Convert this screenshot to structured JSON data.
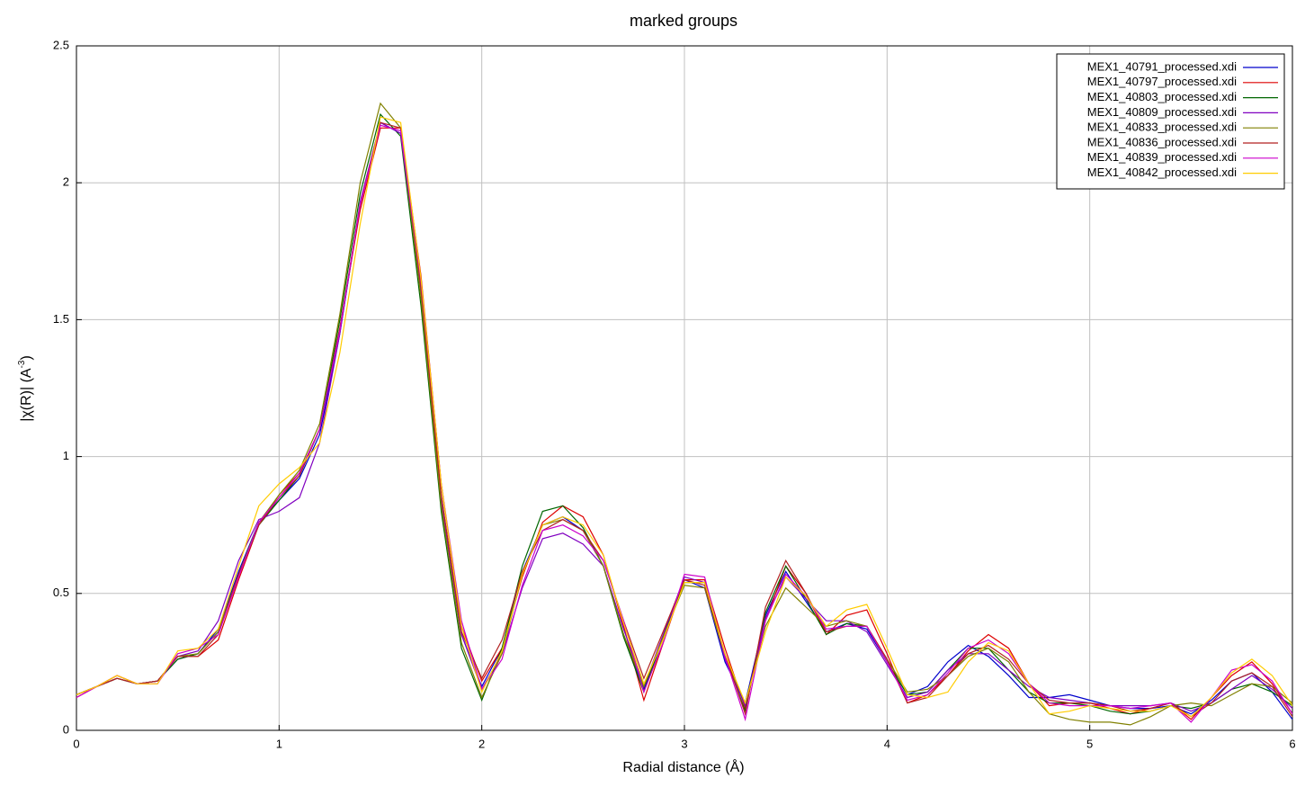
{
  "chart_data": {
    "type": "line",
    "title": "marked groups",
    "xlabel": "Radial distance    (Å)",
    "ylabel": "|χ(R)|   (A",
    "ylabel_sup": "-3",
    "ylabel_end": ")",
    "xlim": [
      0,
      6
    ],
    "ylim": [
      0,
      2.5
    ],
    "xticks": [
      0,
      1,
      2,
      3,
      4,
      5,
      6
    ],
    "yticks": [
      0,
      0.5,
      1,
      1.5,
      2,
      2.5
    ],
    "grid": true,
    "legend": "upper right",
    "x": [
      0,
      0.1,
      0.2,
      0.3,
      0.4,
      0.5,
      0.6,
      0.7,
      0.8,
      0.9,
      1,
      1.1,
      1.2,
      1.3,
      1.4,
      1.5,
      1.6,
      1.7,
      1.8,
      1.9,
      2,
      2.1,
      2.2,
      2.3,
      2.4,
      2.5,
      2.6,
      2.7,
      2.8,
      2.9,
      3,
      3.1,
      3.2,
      3.3,
      3.4,
      3.5,
      3.6,
      3.7,
      3.8,
      3.9,
      4,
      4.1,
      4.2,
      4.3,
      4.4,
      4.5,
      4.6,
      4.7,
      4.8,
      4.9,
      5,
      5.1,
      5.2,
      5.3,
      5.4,
      5.5,
      5.6,
      5.7,
      5.8,
      5.9,
      6
    ],
    "series": [
      {
        "name": "MEX1_40791_processed.xdi",
        "color": "#0000cc",
        "values": [
          0.13,
          0.16,
          0.19,
          0.17,
          0.18,
          0.26,
          0.28,
          0.37,
          0.58,
          0.76,
          0.84,
          0.92,
          1.08,
          1.45,
          1.92,
          2.22,
          2.18,
          1.6,
          0.85,
          0.35,
          0.16,
          0.3,
          0.58,
          0.75,
          0.78,
          0.73,
          0.6,
          0.35,
          0.15,
          0.35,
          0.55,
          0.52,
          0.25,
          0.1,
          0.42,
          0.58,
          0.47,
          0.36,
          0.39,
          0.37,
          0.25,
          0.13,
          0.16,
          0.25,
          0.31,
          0.27,
          0.2,
          0.12,
          0.12,
          0.13,
          0.11,
          0.09,
          0.08,
          0.08,
          0.09,
          0.06,
          0.11,
          0.18,
          0.21,
          0.14,
          0.04
        ]
      },
      {
        "name": "MEX1_40797_processed.xdi",
        "color": "#dd0000",
        "values": [
          0.12,
          0.16,
          0.2,
          0.17,
          0.18,
          0.27,
          0.27,
          0.33,
          0.55,
          0.75,
          0.86,
          0.94,
          1.1,
          1.47,
          1.9,
          2.2,
          2.2,
          1.66,
          0.9,
          0.38,
          0.18,
          0.3,
          0.56,
          0.76,
          0.82,
          0.78,
          0.64,
          0.38,
          0.11,
          0.33,
          0.55,
          0.55,
          0.3,
          0.08,
          0.4,
          0.6,
          0.5,
          0.35,
          0.42,
          0.44,
          0.28,
          0.1,
          0.13,
          0.2,
          0.29,
          0.35,
          0.3,
          0.17,
          0.09,
          0.1,
          0.1,
          0.08,
          0.06,
          0.08,
          0.1,
          0.04,
          0.12,
          0.2,
          0.25,
          0.17,
          0.06
        ]
      },
      {
        "name": "MEX1_40803_processed.xdi",
        "color": "#006600",
        "values": [
          0.13,
          0.16,
          0.19,
          0.17,
          0.18,
          0.26,
          0.28,
          0.36,
          0.57,
          0.75,
          0.84,
          0.93,
          1.1,
          1.5,
          1.96,
          2.25,
          2.17,
          1.55,
          0.8,
          0.3,
          0.11,
          0.3,
          0.6,
          0.8,
          0.82,
          0.74,
          0.6,
          0.34,
          0.14,
          0.35,
          0.54,
          0.54,
          0.27,
          0.07,
          0.43,
          0.6,
          0.48,
          0.35,
          0.39,
          0.38,
          0.25,
          0.13,
          0.14,
          0.22,
          0.3,
          0.3,
          0.22,
          0.14,
          0.1,
          0.1,
          0.09,
          0.07,
          0.06,
          0.07,
          0.09,
          0.08,
          0.1,
          0.15,
          0.17,
          0.14,
          0.09
        ]
      },
      {
        "name": "MEX1_40809_processed.xdi",
        "color": "#8000c0",
        "values": [
          0.13,
          0.16,
          0.19,
          0.17,
          0.18,
          0.27,
          0.29,
          0.4,
          0.62,
          0.77,
          0.8,
          0.85,
          1.05,
          1.45,
          1.93,
          2.22,
          2.18,
          1.6,
          0.84,
          0.35,
          0.15,
          0.28,
          0.52,
          0.7,
          0.72,
          0.68,
          0.6,
          0.37,
          0.16,
          0.36,
          0.56,
          0.54,
          0.26,
          0.09,
          0.41,
          0.56,
          0.48,
          0.4,
          0.4,
          0.36,
          0.24,
          0.12,
          0.14,
          0.22,
          0.28,
          0.28,
          0.22,
          0.16,
          0.12,
          0.11,
          0.1,
          0.09,
          0.09,
          0.09,
          0.1,
          0.07,
          0.1,
          0.15,
          0.2,
          0.15,
          0.08
        ]
      },
      {
        "name": "MEX1_40833_processed.xdi",
        "color": "#808000",
        "values": [
          0.13,
          0.16,
          0.19,
          0.17,
          0.18,
          0.27,
          0.28,
          0.36,
          0.57,
          0.76,
          0.86,
          0.95,
          1.12,
          1.52,
          2.0,
          2.29,
          2.2,
          1.58,
          0.82,
          0.32,
          0.12,
          0.28,
          0.57,
          0.75,
          0.77,
          0.73,
          0.6,
          0.35,
          0.16,
          0.35,
          0.53,
          0.52,
          0.27,
          0.1,
          0.38,
          0.52,
          0.45,
          0.38,
          0.4,
          0.38,
          0.26,
          0.14,
          0.15,
          0.2,
          0.27,
          0.3,
          0.25,
          0.14,
          0.06,
          0.04,
          0.03,
          0.03,
          0.02,
          0.05,
          0.09,
          0.1,
          0.09,
          0.13,
          0.17,
          0.16,
          0.1
        ]
      },
      {
        "name": "MEX1_40836_processed.xdi",
        "color": "#b22222",
        "values": [
          0.13,
          0.16,
          0.19,
          0.17,
          0.18,
          0.27,
          0.27,
          0.35,
          0.57,
          0.75,
          0.85,
          0.93,
          1.1,
          1.47,
          1.92,
          2.22,
          2.2,
          1.62,
          0.86,
          0.36,
          0.19,
          0.33,
          0.58,
          0.73,
          0.77,
          0.73,
          0.62,
          0.4,
          0.19,
          0.37,
          0.55,
          0.53,
          0.28,
          0.06,
          0.45,
          0.62,
          0.5,
          0.36,
          0.38,
          0.38,
          0.26,
          0.1,
          0.12,
          0.2,
          0.28,
          0.31,
          0.26,
          0.17,
          0.11,
          0.1,
          0.1,
          0.09,
          0.07,
          0.08,
          0.1,
          0.05,
          0.1,
          0.18,
          0.21,
          0.16,
          0.05
        ]
      },
      {
        "name": "MEX1_40839_processed.xdi",
        "color": "#cc00cc",
        "values": [
          0.12,
          0.16,
          0.2,
          0.17,
          0.17,
          0.28,
          0.3,
          0.35,
          0.56,
          0.76,
          0.85,
          0.94,
          1.1,
          1.46,
          1.92,
          2.21,
          2.19,
          1.64,
          0.9,
          0.4,
          0.15,
          0.26,
          0.53,
          0.73,
          0.75,
          0.71,
          0.62,
          0.4,
          0.14,
          0.33,
          0.57,
          0.56,
          0.27,
          0.04,
          0.4,
          0.57,
          0.49,
          0.37,
          0.38,
          0.38,
          0.25,
          0.11,
          0.13,
          0.21,
          0.3,
          0.33,
          0.28,
          0.17,
          0.1,
          0.09,
          0.09,
          0.09,
          0.08,
          0.09,
          0.1,
          0.03,
          0.12,
          0.22,
          0.24,
          0.18,
          0.06
        ]
      },
      {
        "name": "MEX1_40842_processed.xdi",
        "color": "#ffcc00",
        "values": [
          0.13,
          0.16,
          0.2,
          0.17,
          0.17,
          0.29,
          0.3,
          0.37,
          0.6,
          0.82,
          0.9,
          0.96,
          1.05,
          1.38,
          1.85,
          2.24,
          2.22,
          1.65,
          0.9,
          0.38,
          0.14,
          0.29,
          0.57,
          0.75,
          0.78,
          0.75,
          0.64,
          0.39,
          0.17,
          0.34,
          0.54,
          0.54,
          0.28,
          0.1,
          0.36,
          0.56,
          0.49,
          0.38,
          0.44,
          0.46,
          0.3,
          0.13,
          0.12,
          0.14,
          0.25,
          0.32,
          0.29,
          0.17,
          0.06,
          0.07,
          0.09,
          0.08,
          0.07,
          0.07,
          0.09,
          0.05,
          0.12,
          0.21,
          0.26,
          0.2,
          0.09
        ]
      }
    ]
  }
}
